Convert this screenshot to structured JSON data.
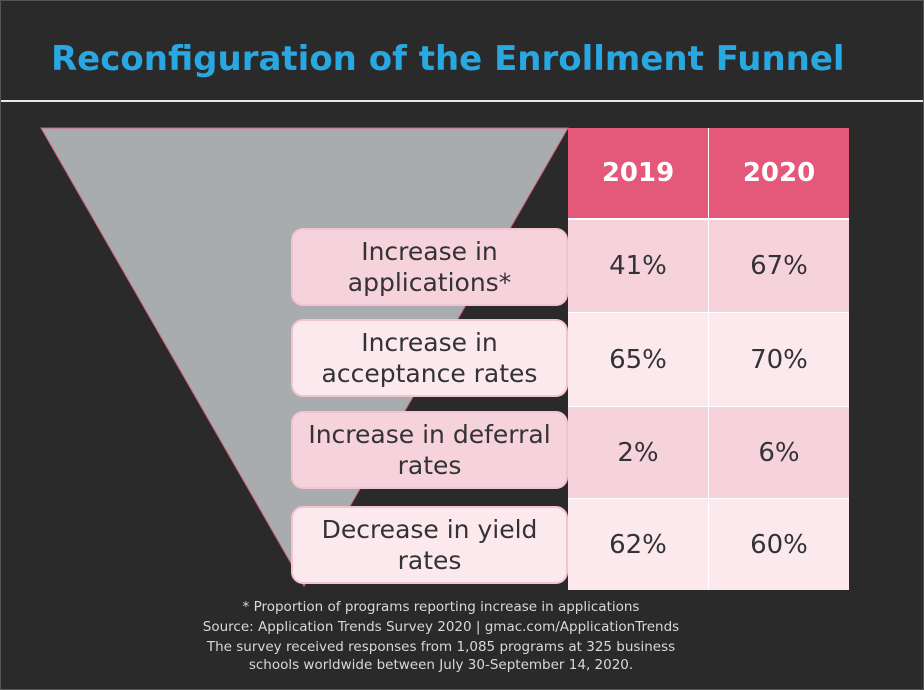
{
  "slide": {
    "title": "Reconfiguration of the Enrollment Funnel",
    "colors": {
      "background": "#2b2a2a",
      "title": "#29a7e1",
      "header": "#e4587a",
      "row_dark": "#f6d3dc",
      "row_light": "#fbe9ee",
      "funnel": "#a8acae"
    },
    "footnotes": [
      "* Proportion of programs reporting increase in applications",
      "Source: Application Trends Survey 2020 | gmac.com/ApplicationTrends",
      "The survey received responses from 1,085 programs at 325 business",
      "schools worldwide between July 30-September 14, 2020."
    ]
  },
  "chart_data": {
    "type": "table",
    "title": "Reconfiguration of the Enrollment Funnel",
    "columns": [
      "2019",
      "2020"
    ],
    "rows": [
      {
        "label": "Increase in applications*",
        "values": [
          "41%",
          "67%"
        ]
      },
      {
        "label": "Increase in acceptance rates",
        "values": [
          "65%",
          "70%"
        ]
      },
      {
        "label": "Increase in deferral rates",
        "values": [
          "2%",
          "6%"
        ]
      },
      {
        "label": "Decrease in yield rates",
        "values": [
          "62%",
          "60%"
        ]
      }
    ]
  }
}
